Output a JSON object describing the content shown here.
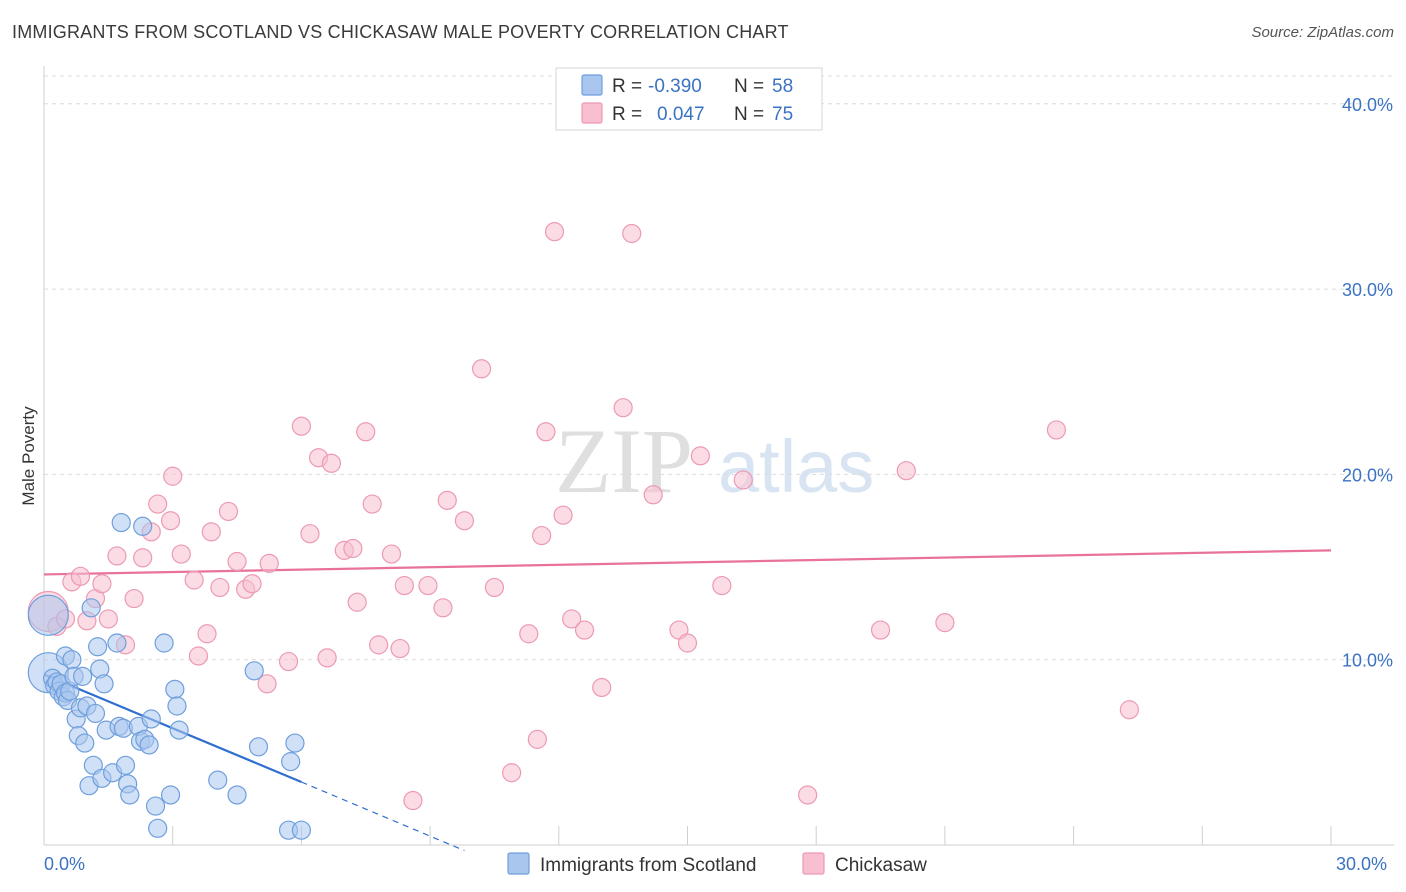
{
  "header": {
    "title": "IMMIGRANTS FROM SCOTLAND VS CHICKASAW MALE POVERTY CORRELATION CHART",
    "source": "Source: ZipAtlas.com"
  },
  "watermark": {
    "zip": "ZIP",
    "atlas": "atlas"
  },
  "colors": {
    "blue_fill": "#a9c6ef",
    "blue_stroke": "#6f9fdc",
    "blue_line": "#2f6fd0",
    "pink_fill": "#f7bfd0",
    "pink_stroke": "#ec9ab4",
    "pink_line": "#e8729a",
    "axis_label": "#3b73c4",
    "grid": "#dcdcdc"
  },
  "chart_data": {
    "type": "scatter",
    "title": "IMMIGRANTS FROM SCOTLAND VS CHICKASAW MALE POVERTY CORRELATION CHART",
    "xlabel": "",
    "ylabel": "Male Poverty",
    "xlim": [
      0,
      30
    ],
    "ylim": [
      0,
      41.5
    ],
    "x_tick_labels": [
      "0.0%",
      "30.0%"
    ],
    "y_ticks": [
      10,
      20,
      30,
      40
    ],
    "y_tick_labels": [
      "10.0%",
      "20.0%",
      "30.0%",
      "40.0%"
    ],
    "grid": true,
    "legend_top": [
      {
        "r_label": "R =",
        "r_value": "-0.390",
        "n_label": "N =",
        "n_value": "58"
      },
      {
        "r_label": "R =",
        "r_value": "0.047",
        "n_label": "N =",
        "n_value": "75"
      }
    ],
    "series": [
      {
        "name": "Immigrants from Scotland",
        "trend": {
          "x0": 0,
          "y0": 9.2,
          "x1": 6.0,
          "y1": 3.4,
          "dash_to_x": 9.8,
          "dash_to_y": -0.3
        },
        "points": [
          [
            0.1,
            12.4
          ],
          [
            0.1,
            9.3
          ],
          [
            0.2,
            9.0
          ],
          [
            0.25,
            8.6
          ],
          [
            0.3,
            8.8
          ],
          [
            0.35,
            8.3
          ],
          [
            0.4,
            8.7
          ],
          [
            0.45,
            8.0
          ],
          [
            0.5,
            10.2
          ],
          [
            0.5,
            8.2
          ],
          [
            0.55,
            7.8
          ],
          [
            0.6,
            8.3
          ],
          [
            0.65,
            10.0
          ],
          [
            0.7,
            9.1
          ],
          [
            0.75,
            6.8
          ],
          [
            0.8,
            5.9
          ],
          [
            0.85,
            7.4
          ],
          [
            0.9,
            9.1
          ],
          [
            0.95,
            5.5
          ],
          [
            1.0,
            7.5
          ],
          [
            1.05,
            3.2
          ],
          [
            1.1,
            12.8
          ],
          [
            1.15,
            4.3
          ],
          [
            1.2,
            7.1
          ],
          [
            1.25,
            10.7
          ],
          [
            1.3,
            9.5
          ],
          [
            1.35,
            3.6
          ],
          [
            1.4,
            8.7
          ],
          [
            1.45,
            6.2
          ],
          [
            1.6,
            3.9
          ],
          [
            1.7,
            10.9
          ],
          [
            1.75,
            6.4
          ],
          [
            1.85,
            6.3
          ],
          [
            1.9,
            4.3
          ],
          [
            1.95,
            3.3
          ],
          [
            2.0,
            2.7
          ],
          [
            1.8,
            17.4
          ],
          [
            2.2,
            6.4
          ],
          [
            2.25,
            5.6
          ],
          [
            2.3,
            17.2
          ],
          [
            2.35,
            5.7
          ],
          [
            2.45,
            5.4
          ],
          [
            2.5,
            6.8
          ],
          [
            2.6,
            2.1
          ],
          [
            2.65,
            0.9
          ],
          [
            2.8,
            10.9
          ],
          [
            2.95,
            2.7
          ],
          [
            3.05,
            8.4
          ],
          [
            3.1,
            7.5
          ],
          [
            3.15,
            6.2
          ],
          [
            4.05,
            3.5
          ],
          [
            4.5,
            2.7
          ],
          [
            4.9,
            9.4
          ],
          [
            5.0,
            5.3
          ],
          [
            5.7,
            0.8
          ],
          [
            5.75,
            4.5
          ],
          [
            5.85,
            5.5
          ],
          [
            6.0,
            0.8
          ]
        ]
      },
      {
        "name": "Chickasaw",
        "trend": {
          "x0": 0,
          "y0": 14.6,
          "x1": 30,
          "y1": 15.9
        },
        "points": [
          [
            0.1,
            12.6
          ],
          [
            0.3,
            11.8
          ],
          [
            0.5,
            12.2
          ],
          [
            0.65,
            14.2
          ],
          [
            0.85,
            14.5
          ],
          [
            1.0,
            12.1
          ],
          [
            1.2,
            13.3
          ],
          [
            1.35,
            14.1
          ],
          [
            1.5,
            12.2
          ],
          [
            1.7,
            15.6
          ],
          [
            1.9,
            10.8
          ],
          [
            2.1,
            13.3
          ],
          [
            2.3,
            15.5
          ],
          [
            2.5,
            16.9
          ],
          [
            2.65,
            18.4
          ],
          [
            2.95,
            17.5
          ],
          [
            3.0,
            19.9
          ],
          [
            3.2,
            15.7
          ],
          [
            3.5,
            14.3
          ],
          [
            3.6,
            10.2
          ],
          [
            3.8,
            11.4
          ],
          [
            3.9,
            16.9
          ],
          [
            4.1,
            13.9
          ],
          [
            4.3,
            18.0
          ],
          [
            4.5,
            15.3
          ],
          [
            4.7,
            13.8
          ],
          [
            4.85,
            14.1
          ],
          [
            5.2,
            8.7
          ],
          [
            5.25,
            15.2
          ],
          [
            5.7,
            9.9
          ],
          [
            6.0,
            22.6
          ],
          [
            6.2,
            16.8
          ],
          [
            6.4,
            20.9
          ],
          [
            6.7,
            20.6
          ],
          [
            6.6,
            10.1
          ],
          [
            7.0,
            15.9
          ],
          [
            7.2,
            16.0
          ],
          [
            7.3,
            13.1
          ],
          [
            7.5,
            22.3
          ],
          [
            7.65,
            18.4
          ],
          [
            7.8,
            10.8
          ],
          [
            8.1,
            15.7
          ],
          [
            8.3,
            10.6
          ],
          [
            8.4,
            14.0
          ],
          [
            8.95,
            14.0
          ],
          [
            9.3,
            12.8
          ],
          [
            9.4,
            18.6
          ],
          [
            9.8,
            17.5
          ],
          [
            10.2,
            25.7
          ],
          [
            10.5,
            13.9
          ],
          [
            10.9,
            3.9
          ],
          [
            11.3,
            11.4
          ],
          [
            11.5,
            5.7
          ],
          [
            11.6,
            16.7
          ],
          [
            11.7,
            22.3
          ],
          [
            11.9,
            33.1
          ],
          [
            12.1,
            17.8
          ],
          [
            12.3,
            12.2
          ],
          [
            12.6,
            11.6
          ],
          [
            13.0,
            8.5
          ],
          [
            13.5,
            23.6
          ],
          [
            13.7,
            33.0
          ],
          [
            14.2,
            18.9
          ],
          [
            14.8,
            11.6
          ],
          [
            15.0,
            10.9
          ],
          [
            15.3,
            21.0
          ],
          [
            15.8,
            14.0
          ],
          [
            16.3,
            19.7
          ],
          [
            17.8,
            2.7
          ],
          [
            19.5,
            11.6
          ],
          [
            20.1,
            20.2
          ],
          [
            21.0,
            12.0
          ],
          [
            23.6,
            22.4
          ],
          [
            25.3,
            7.3
          ],
          [
            8.6,
            2.4
          ]
        ]
      }
    ]
  },
  "bottom_legend": [
    "Immigrants from Scotland",
    "Chickasaw"
  ]
}
